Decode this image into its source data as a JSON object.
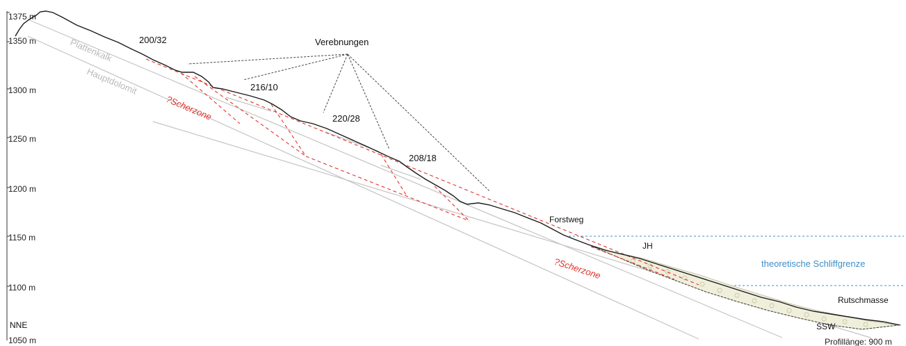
{
  "elevation_labels": [
    "1375 m",
    "1350 m",
    "1300 m",
    "1250 m",
    "1200 m",
    "1150 m",
    "1100 m",
    "1050 m"
  ],
  "orientation": {
    "left": "NNE",
    "right": "SSW"
  },
  "profile_length": "Profillänge: 900 m",
  "terraces_label": "Verebnungen",
  "dip_measurements": [
    "200/32",
    "216/10",
    "220/28",
    "208/18"
  ],
  "units": {
    "upper": "Plattenkalk",
    "lower": "Hauptdolomit"
  },
  "shear_zone_label": "?Scherzone",
  "forest_road": "Forstweg",
  "jh_label": "JH",
  "landslide_label": "Rutschmasse",
  "trimline_label": "theoretische Schliffgrenze",
  "colors": {
    "terrain": "#1a1a1a",
    "shear_zone": "#e0332c",
    "layers": "#b9b9b9",
    "trimline": "#3d8fc7",
    "landslide_fill": "#efefdc"
  }
}
